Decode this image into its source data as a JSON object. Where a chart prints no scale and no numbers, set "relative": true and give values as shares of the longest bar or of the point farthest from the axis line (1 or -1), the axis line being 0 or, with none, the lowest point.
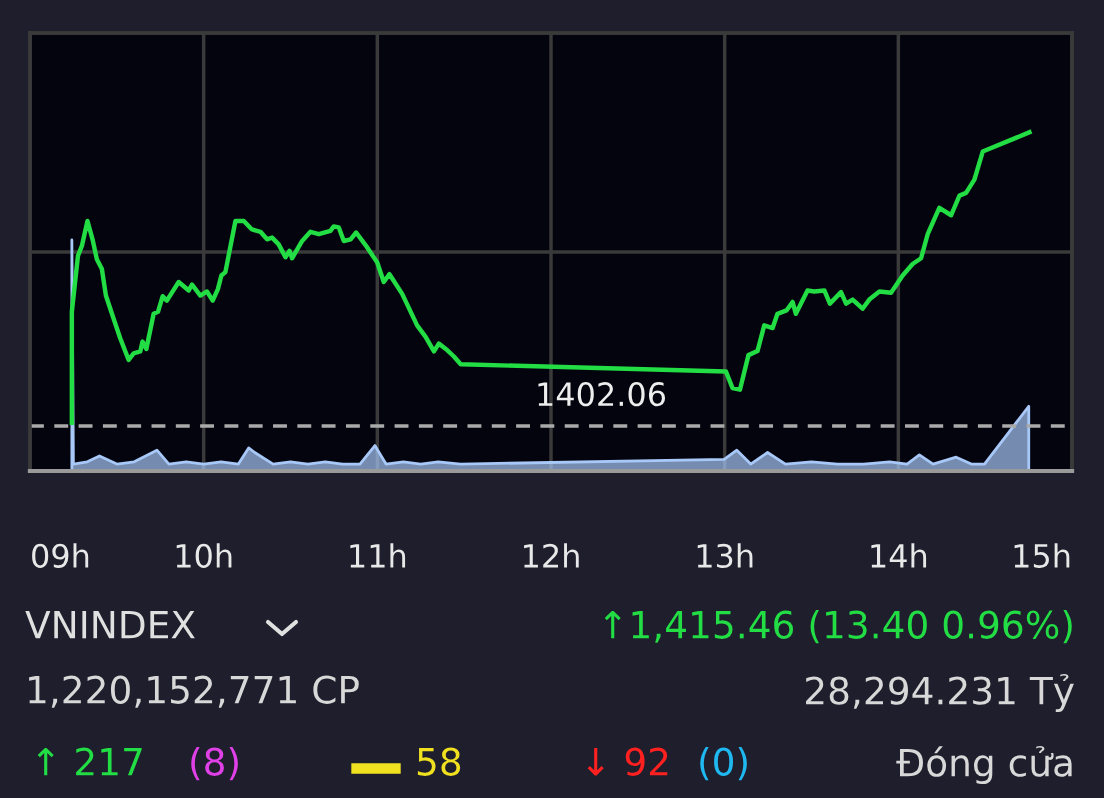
{
  "chart_data": {
    "type": "line",
    "relative": true,
    "x": [
      9.241,
      9.241,
      9.276,
      9.299,
      9.331,
      9.36,
      9.385,
      9.414,
      9.437,
      9.481,
      9.52,
      9.568,
      9.597,
      9.635,
      9.648,
      9.67,
      9.712,
      9.737,
      9.764,
      9.788,
      9.856,
      9.914,
      9.933,
      9.981,
      10.019,
      10.052,
      10.082,
      10.102,
      10.125,
      10.183,
      10.231,
      10.278,
      10.327,
      10.365,
      10.394,
      10.432,
      10.471,
      10.494,
      10.509,
      10.567,
      10.615,
      10.663,
      10.73,
      10.749,
      10.778,
      10.807,
      10.846,
      10.878,
      10.932,
      10.999,
      11.037,
      11.07,
      11.143,
      11.229,
      11.278,
      11.326,
      11.354,
      11.402,
      11.441,
      11.48,
      13.007,
      13.045,
      13.088,
      13.137,
      13.189,
      13.228,
      13.276,
      13.304,
      13.356,
      13.391,
      13.41,
      13.477,
      13.516,
      13.574,
      13.606,
      13.67,
      13.699,
      13.737,
      13.794,
      13.833,
      13.891,
      13.958,
      14.025,
      14.082,
      14.131,
      14.169,
      14.236,
      14.304,
      14.352,
      14.39,
      14.438,
      14.486,
      14.755
    ],
    "series": [
      {
        "color": "#22dd44",
        "values": [
          0.142,
          0.47,
          0.635,
          0.665,
          0.738,
          0.684,
          0.625,
          0.596,
          0.518,
          0.45,
          0.391,
          0.328,
          0.347,
          0.353,
          0.382,
          0.36,
          0.464,
          0.47,
          0.516,
          0.503,
          0.558,
          0.533,
          0.55,
          0.518,
          0.53,
          0.503,
          0.537,
          0.577,
          0.587,
          0.738,
          0.738,
          0.713,
          0.706,
          0.684,
          0.689,
          0.669,
          0.631,
          0.65,
          0.628,
          0.679,
          0.706,
          0.699,
          0.709,
          0.722,
          0.719,
          0.679,
          0.684,
          0.704,
          0.667,
          0.616,
          0.558,
          0.581,
          0.523,
          0.43,
          0.396,
          0.353,
          0.376,
          0.357,
          0.338,
          0.315,
          0.294,
          0.245,
          0.24,
          0.342,
          0.354,
          0.43,
          0.422,
          0.464,
          0.474,
          0.499,
          0.464,
          0.533,
          0.53,
          0.533,
          0.494,
          0.528,
          0.494,
          0.506,
          0.479,
          0.506,
          0.53,
          0.526,
          0.577,
          0.611,
          0.628,
          0.699,
          0.777,
          0.755,
          0.813,
          0.821,
          0.86,
          0.943,
          1.0
        ]
      },
      {
        "type": "area",
        "axis": "y2",
        "color": "#a8c8f8",
        "x": [
          9.241,
          9.25,
          9.33,
          9.4,
          9.5,
          9.6,
          9.731,
          9.8,
          9.9,
          10.0,
          10.1,
          10.2,
          10.259,
          10.294,
          10.4,
          10.5,
          10.6,
          10.7,
          10.8,
          10.9,
          10.986,
          11.05,
          11.15,
          11.25,
          11.35,
          11.48,
          12.997,
          13.07,
          13.15,
          13.247,
          13.35,
          13.5,
          13.65,
          13.8,
          13.95,
          14.05,
          14.121,
          14.2,
          14.333,
          14.42,
          14.496,
          14.751
        ],
        "values": [
          1.0,
          0.03,
          0.04,
          0.065,
          0.03,
          0.04,
          0.09,
          0.03,
          0.04,
          0.03,
          0.04,
          0.03,
          0.1,
          0.08,
          0.03,
          0.04,
          0.03,
          0.04,
          0.03,
          0.03,
          0.11,
          0.03,
          0.04,
          0.03,
          0.04,
          0.03,
          0.05,
          0.09,
          0.03,
          0.08,
          0.03,
          0.04,
          0.03,
          0.03,
          0.04,
          0.03,
          0.07,
          0.03,
          0.06,
          0.03,
          0.03,
          0.28
        ]
      }
    ],
    "xlim": [
      9,
      15
    ],
    "xticks": [
      {
        "value": 9,
        "label": "09h"
      },
      {
        "value": 10,
        "label": "10h"
      },
      {
        "value": 11,
        "label": "11h"
      },
      {
        "value": 12,
        "label": "12h"
      },
      {
        "value": 13,
        "label": "13h"
      },
      {
        "value": 14,
        "label": "14h"
      },
      {
        "value": 15,
        "label": "15h"
      }
    ],
    "tick_labels": "x",
    "grid": true,
    "ref_lines": [
      {
        "axis": "y",
        "value": 0.133,
        "color": "#aaaaaa",
        "line_style": "dashed"
      }
    ],
    "annotations": [
      "1402.06",
      "VNINDEX",
      "↑1,415.46 (13.40 0.96%)",
      "1,220,152,771 CP",
      "28,294.231 Tỷ",
      "↑ 217",
      "(8)",
      "58",
      "↓ 92",
      "(0)",
      "Đóng cửa"
    ]
  }
}
